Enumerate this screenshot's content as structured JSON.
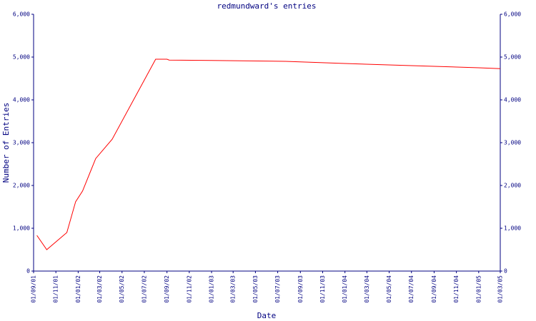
{
  "chart_data": {
    "type": "line",
    "title": "redmundward's entries",
    "y_label": "Number of Entries",
    "x_label": "Date",
    "x": [
      "2001-09-10",
      "2001-10-07",
      "2001-12-01",
      "2001-12-25",
      "2002-01-13",
      "2002-02-18",
      "2002-04-04",
      "2002-08-01",
      "2002-09-01",
      "2002-09-07",
      "2003-01-01",
      "2003-07-22",
      "2004-01-01",
      "2004-07-01",
      "2005-01-01",
      "2005-03-01"
    ],
    "values": [
      833,
      500,
      900,
      1620,
      1870,
      2630,
      3080,
      4950,
      4950,
      4930,
      4920,
      4900,
      4850,
      4800,
      4750,
      4730
    ],
    "color": "#ff0000",
    "xlim": [
      "2001-09-01",
      "2005-03-01"
    ],
    "xticks": [
      {
        "value": "2001-09-01",
        "label": "01/09/01"
      },
      {
        "value": "2001-11-01",
        "label": "01/11/01"
      },
      {
        "value": "2002-01-01",
        "label": "01/01/02"
      },
      {
        "value": "2002-03-01",
        "label": "01/03/02"
      },
      {
        "value": "2002-05-01",
        "label": "01/05/02"
      },
      {
        "value": "2002-07-01",
        "label": "01/07/02"
      },
      {
        "value": "2002-09-01",
        "label": "01/09/02"
      },
      {
        "value": "2002-11-01",
        "label": "01/11/02"
      },
      {
        "value": "2003-01-01",
        "label": "01/01/03"
      },
      {
        "value": "2003-03-01",
        "label": "01/03/03"
      },
      {
        "value": "2003-05-01",
        "label": "01/05/03"
      },
      {
        "value": "2003-07-01",
        "label": "01/07/03"
      },
      {
        "value": "2003-09-01",
        "label": "01/09/03"
      },
      {
        "value": "2003-11-01",
        "label": "01/11/03"
      },
      {
        "value": "2004-01-01",
        "label": "01/01/04"
      },
      {
        "value": "2004-03-01",
        "label": "01/03/04"
      },
      {
        "value": "2004-05-01",
        "label": "01/05/04"
      },
      {
        "value": "2004-07-01",
        "label": "01/07/04"
      },
      {
        "value": "2004-09-01",
        "label": "01/09/04"
      },
      {
        "value": "2004-11-01",
        "label": "01/11/04"
      },
      {
        "value": "2005-01-01",
        "label": "01/01/05"
      },
      {
        "value": "2005-03-01",
        "label": "01/03/05"
      }
    ],
    "ylim": [
      0,
      6000
    ],
    "yticks": [
      0,
      {
        "value": 1000,
        "label": "1,000"
      },
      {
        "value": 2000,
        "label": "2,000"
      },
      {
        "value": 3000,
        "label": "3,000"
      },
      {
        "value": 4000,
        "label": "4,000"
      },
      {
        "value": 5000,
        "label": "5,000"
      },
      {
        "value": 6000,
        "label": "6,000"
      }
    ],
    "y2lim": [
      0,
      6000
    ],
    "y2ticks": [
      0,
      {
        "value": 1000,
        "label": "1,000"
      },
      {
        "value": 2000,
        "label": "2,000"
      },
      {
        "value": 3000,
        "label": "3,000"
      },
      {
        "value": 4000,
        "label": "4,000"
      },
      {
        "value": 5000,
        "label": "5,000"
      },
      {
        "value": 6000,
        "label": "6,000"
      }
    ]
  }
}
